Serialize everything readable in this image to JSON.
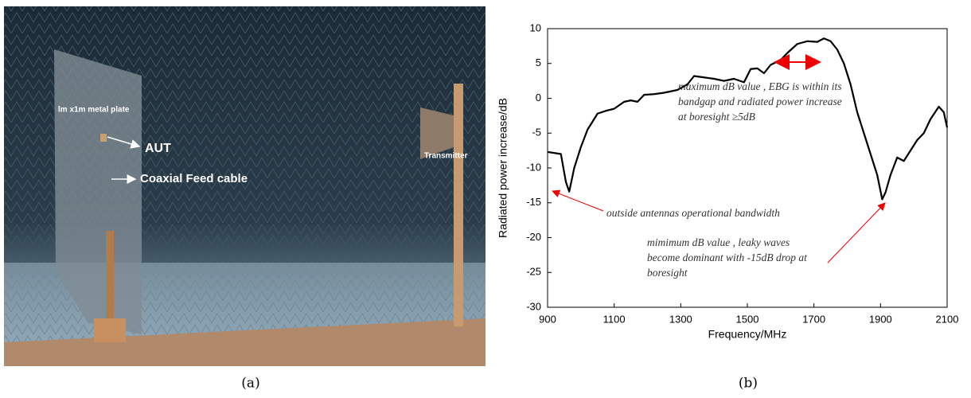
{
  "photo": {
    "labels": {
      "plate": "lm x1m metal plate",
      "aut": "AUT",
      "feed": "Coaxial Feed cable",
      "transmitter": "Transmitter"
    }
  },
  "captions": {
    "a": "(a)",
    "b": "(b)"
  },
  "chart_data": {
    "type": "line",
    "x_label": "Frequency/MHz",
    "y_label": "Radiated power increase/dB",
    "x": [
      900,
      940,
      955,
      965,
      980,
      1000,
      1020,
      1050,
      1075,
      1100,
      1130,
      1150,
      1170,
      1190,
      1220,
      1250,
      1290,
      1320,
      1340,
      1370,
      1400,
      1430,
      1460,
      1490,
      1510,
      1530,
      1550,
      1570,
      1600,
      1620,
      1650,
      1680,
      1710,
      1730,
      1750,
      1770,
      1790,
      1810,
      1830,
      1850,
      1870,
      1890,
      1905,
      1915,
      1930,
      1950,
      1970,
      1990,
      2010,
      2030,
      2050,
      2075,
      2090,
      2100
    ],
    "values": [
      -7.7,
      -8,
      -12,
      -13.4,
      -10,
      -7,
      -4.5,
      -2.2,
      -1.8,
      -1.5,
      -0.5,
      -0.3,
      -0.5,
      0.5,
      0.6,
      0.8,
      1.2,
      2.0,
      3.2,
      3.0,
      2.8,
      2.5,
      2.8,
      2.3,
      4.2,
      4.3,
      3.6,
      4.8,
      5.5,
      6.5,
      7.8,
      8.2,
      8.1,
      8.6,
      8.2,
      7.0,
      5.0,
      2.0,
      -2,
      -5,
      -8,
      -11,
      -14.5,
      -13.5,
      -11,
      -8.5,
      -9,
      -7.5,
      -6,
      -5,
      -3,
      -1.2,
      -2,
      -4.2
    ],
    "color": "#000000",
    "xlim": [
      900,
      2100
    ],
    "xticks": [
      900,
      1100,
      1300,
      1500,
      1700,
      1900,
      2100
    ],
    "ylim": [
      -30,
      10
    ],
    "yticks": [
      -30,
      -25,
      -20,
      -15,
      -10,
      -5,
      0,
      5,
      10
    ],
    "annotations": [
      {
        "lines": [
          "maximum dB value , EBG is within its",
          "bandgap and radiated power increase",
          "at boresight ≥5dB"
        ]
      },
      {
        "lines": [
          "outside antennas operational bandwidth"
        ]
      },
      {
        "lines": [
          "mimimum dB value , leaky waves",
          "become dominant with -15dB drop at",
          "boresight"
        ]
      }
    ]
  }
}
